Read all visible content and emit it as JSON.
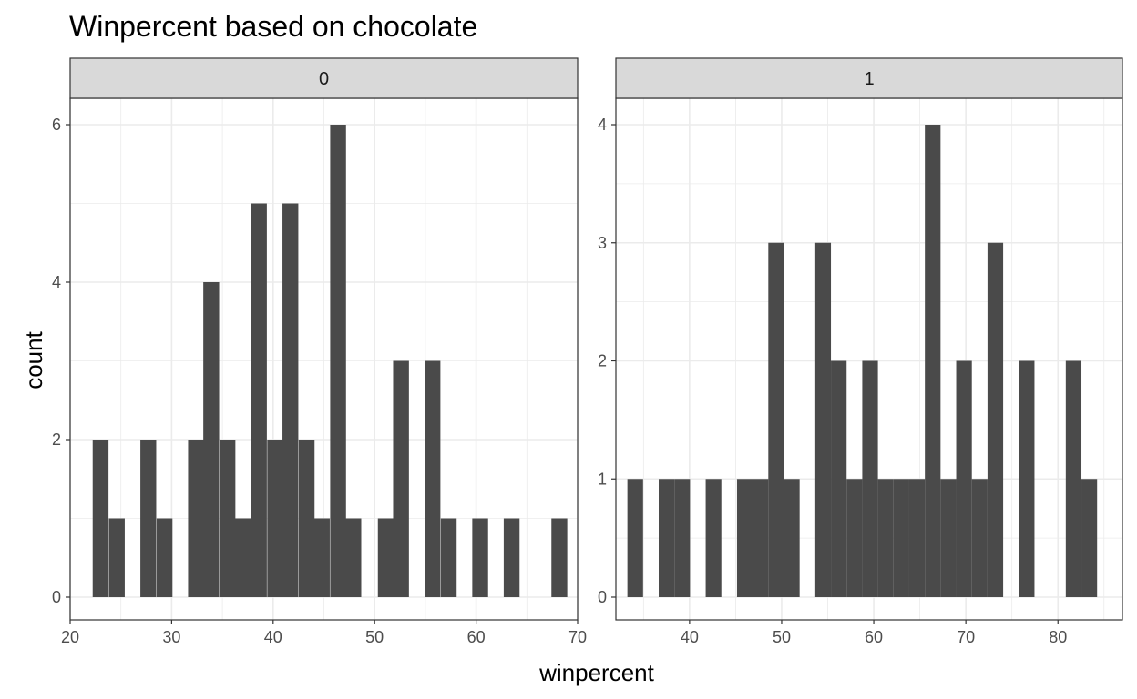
{
  "chart_data": {
    "type": "bar",
    "title": "Winpercent based on chocolate",
    "xlabel": "winpercent",
    "ylabel": "count",
    "grid": true,
    "colors": {
      "bar": "#4a4a4a",
      "strip": "#d9d9d9",
      "grid": "#ebebeb",
      "panel_border": "#333333"
    },
    "panels": [
      {
        "label": "0",
        "xlim": [
          20,
          70
        ],
        "ylim": [
          0,
          6
        ],
        "xticks": [
          20,
          30,
          40,
          50,
          60,
          70
        ],
        "yticks": [
          0,
          2,
          4,
          6
        ],
        "bin_width": 1.56,
        "bins": [
          {
            "x": 23.0,
            "count": 2
          },
          {
            "x": 24.6,
            "count": 1
          },
          {
            "x": 27.7,
            "count": 2
          },
          {
            "x": 29.3,
            "count": 1
          },
          {
            "x": 32.4,
            "count": 2
          },
          {
            "x": 33.9,
            "count": 4
          },
          {
            "x": 35.5,
            "count": 2
          },
          {
            "x": 37.0,
            "count": 1
          },
          {
            "x": 38.6,
            "count": 5
          },
          {
            "x": 40.2,
            "count": 2
          },
          {
            "x": 41.7,
            "count": 5
          },
          {
            "x": 43.3,
            "count": 2
          },
          {
            "x": 44.8,
            "count": 1
          },
          {
            "x": 46.4,
            "count": 6
          },
          {
            "x": 47.9,
            "count": 1
          },
          {
            "x": 51.1,
            "count": 1
          },
          {
            "x": 52.6,
            "count": 3
          },
          {
            "x": 55.7,
            "count": 3
          },
          {
            "x": 57.3,
            "count": 1
          },
          {
            "x": 60.4,
            "count": 1
          },
          {
            "x": 63.5,
            "count": 1
          },
          {
            "x": 68.2,
            "count": 1
          }
        ]
      },
      {
        "label": "1",
        "xlim": [
          32,
          87
        ],
        "ylim": [
          0,
          4
        ],
        "xticks": [
          40,
          50,
          60,
          70,
          80
        ],
        "yticks": [
          0,
          1,
          2,
          3,
          4
        ],
        "bin_width": 1.7,
        "bins": [
          {
            "x": 34.1,
            "count": 1
          },
          {
            "x": 37.5,
            "count": 1
          },
          {
            "x": 39.2,
            "count": 1
          },
          {
            "x": 42.6,
            "count": 1
          },
          {
            "x": 46.0,
            "count": 1
          },
          {
            "x": 47.7,
            "count": 1
          },
          {
            "x": 49.4,
            "count": 3
          },
          {
            "x": 51.1,
            "count": 1
          },
          {
            "x": 54.5,
            "count": 3
          },
          {
            "x": 56.2,
            "count": 2
          },
          {
            "x": 57.9,
            "count": 1
          },
          {
            "x": 59.6,
            "count": 2
          },
          {
            "x": 61.3,
            "count": 1
          },
          {
            "x": 63.0,
            "count": 1
          },
          {
            "x": 64.7,
            "count": 1
          },
          {
            "x": 66.4,
            "count": 4
          },
          {
            "x": 68.1,
            "count": 1
          },
          {
            "x": 69.8,
            "count": 2
          },
          {
            "x": 71.5,
            "count": 1
          },
          {
            "x": 73.2,
            "count": 3
          },
          {
            "x": 76.6,
            "count": 2
          },
          {
            "x": 81.7,
            "count": 2
          },
          {
            "x": 83.4,
            "count": 1
          }
        ]
      }
    ]
  }
}
